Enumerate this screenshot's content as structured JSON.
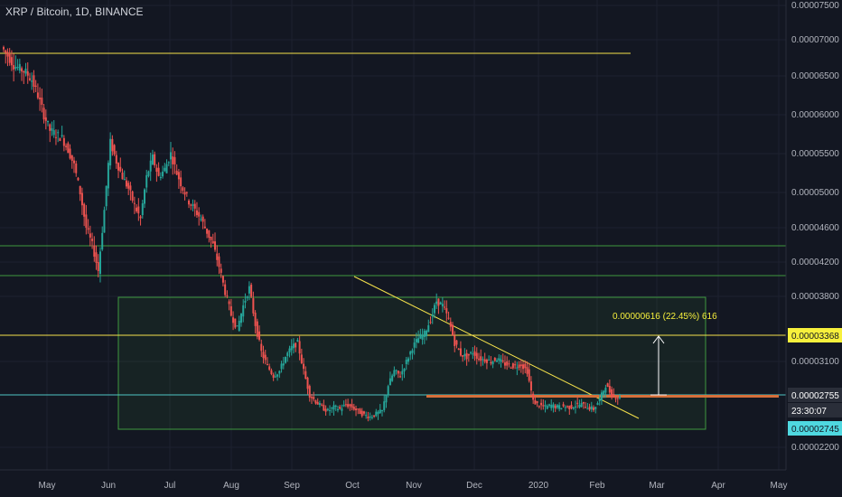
{
  "header": {
    "title": "XRP / Bitcoin, 1D, BINANCE"
  },
  "colors": {
    "background": "#131722",
    "up": "#26a69a",
    "down": "#ef5350",
    "green_line": "#3f9a3f",
    "yellow_line": "#f5e24b",
    "teal_line": "#4fc6c4",
    "orange_line": "#d66f3a",
    "badge_yellow": "#f7f03c",
    "badge_teal": "#4fd8e0"
  },
  "chart_data": {
    "type": "candlestick",
    "title": "XRP / Bitcoin, 1D, BINANCE",
    "x_ticks": [
      "May",
      "Jun",
      "Jul",
      "Aug",
      "Sep",
      "Oct",
      "Nov",
      "Dec",
      "2020",
      "Feb",
      "Mar",
      "Apr",
      "May"
    ],
    "y_ticks": [
      "0.00007500",
      "0.00007000",
      "0.00006500",
      "0.00006000",
      "0.00005500",
      "0.00005000",
      "0.00004600",
      "0.00004200",
      "0.00003800",
      "0.00003100",
      "0.00002200"
    ],
    "ylim": [
      2.1e-05,
      7.5e-05
    ],
    "last_price_badge": "0.00002755",
    "countdown": "23:30:07",
    "level_badge": "0.00003368",
    "low_badge": "0.00002745",
    "annotation": "0.00000616 (22.45%) 616",
    "series_close": [
      6.9e-05,
      6.78e-05,
      6.65e-05,
      6.6e-05,
      6.55e-05,
      6.45e-05,
      6.25e-05,
      6e-05,
      5.8e-05,
      5.75e-05,
      5.7e-05,
      5.55e-05,
      5.35e-05,
      5e-05,
      4.6e-05,
      4.4e-05,
      4.1e-05,
      4.8e-05,
      5.65e-05,
      5.4e-05,
      5.2e-05,
      5.05e-05,
      4.85e-05,
      4.7e-05,
      5.2e-05,
      5.45e-05,
      5.2e-05,
      5.3e-05,
      5.5e-05,
      5.25e-05,
      5.05e-05,
      4.9e-05,
      4.8e-05,
      4.7e-05,
      4.55e-05,
      4.4e-05,
      4.15e-05,
      3.85e-05,
      3.6e-05,
      3.45e-05,
      3.7e-05,
      3.9e-05,
      3.5e-05,
      3.2e-05,
      3.05e-05,
      2.95e-05,
      3e-05,
      3.15e-05,
      3.25e-05,
      3.3e-05,
      3e-05,
      2.75e-05,
      2.68e-05,
      2.62e-05,
      2.58e-05,
      2.62e-05,
      2.6e-05,
      2.65e-05,
      2.62e-05,
      2.58e-05,
      2.54e-05,
      2.52e-05,
      2.55e-05,
      2.58e-05,
      2.85e-05,
      3e-05,
      2.95e-05,
      3.1e-05,
      3.25e-05,
      3.35e-05,
      3.4e-05,
      3.55e-05,
      3.75e-05,
      3.7e-05,
      3.55e-05,
      3.3e-05,
      3.18e-05,
      3.15e-05,
      3.2e-05,
      3.13e-05,
      3.12e-05,
      3.1e-05,
      3.13e-05,
      3.08e-05,
      3.06e-05,
      3.05e-05,
      3.07e-05,
      3e-05,
      2.68e-05,
      2.64e-05,
      2.62e-05,
      2.64e-05,
      2.62e-05,
      2.63e-05,
      2.62e-05,
      2.64e-05,
      2.65e-05,
      2.62e-05,
      2.6e-05,
      2.7e-05,
      2.85e-05,
      2.75e-05,
      2.72e-05
    ]
  }
}
